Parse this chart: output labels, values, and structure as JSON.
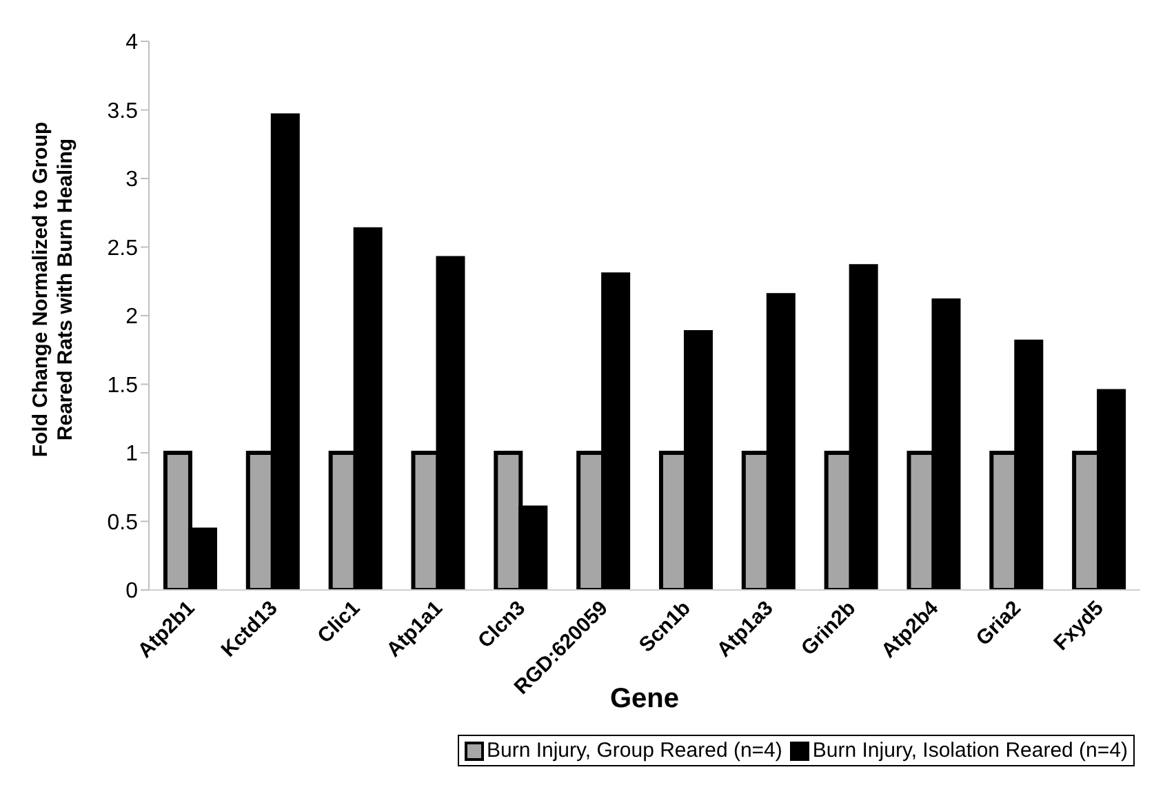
{
  "chart_data": {
    "type": "bar",
    "xlabel": "Gene",
    "ylabel": "Fold Change Normalized to Group Reared Rats with Burn Healing",
    "categories": [
      "Atp2b1",
      "Kctd13",
      "Clic1",
      "Atp1a1",
      "Clcn3",
      "RGD:620059",
      "Scn1b",
      "Atp1a3",
      "Grin2b",
      "Atp2b4",
      "Gria2",
      "Fxyd5"
    ],
    "series": [
      {
        "name": "Burn Injury, Group Reared (n=4)",
        "color": "#a6a6a6",
        "values": [
          1,
          1,
          1,
          1,
          1,
          1,
          1,
          1,
          1,
          1,
          1,
          1
        ]
      },
      {
        "name": "Burn Injury, Isolation Reared (n=4)",
        "color": "#000000",
        "values": [
          0.44,
          3.46,
          2.63,
          2.42,
          0.6,
          2.3,
          1.88,
          2.15,
          2.36,
          2.11,
          1.81,
          1.45
        ]
      }
    ],
    "ylim": [
      0,
      4
    ],
    "yticks": [
      0,
      0.5,
      1,
      1.5,
      2,
      2.5,
      3,
      3.5,
      4
    ],
    "grid": false,
    "legend": "bottom"
  }
}
